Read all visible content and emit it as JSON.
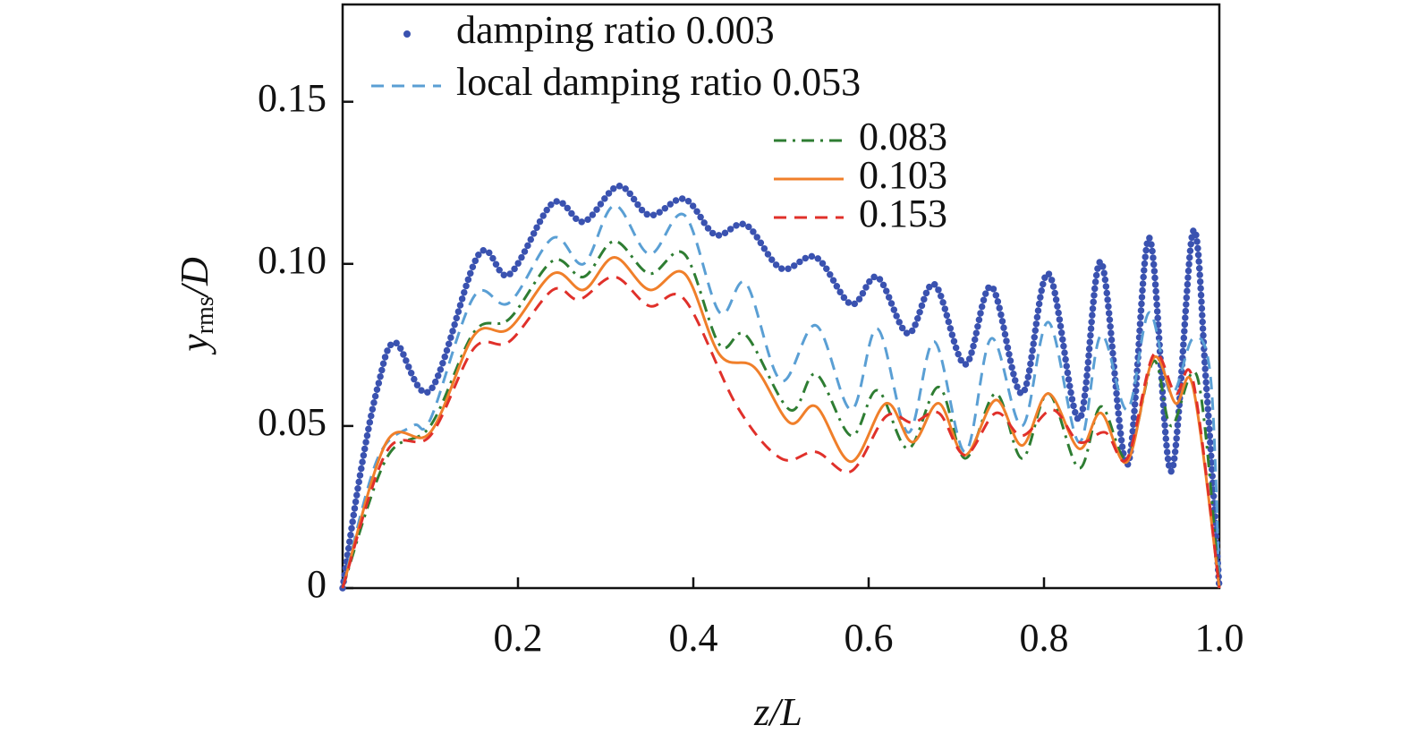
{
  "chart_data": {
    "type": "line",
    "xlabel": "z/L",
    "ylabel": {
      "main": "y",
      "sub": "rms",
      "rest": "/D"
    },
    "xlim": [
      0,
      1
    ],
    "ylim": [
      0,
      0.18
    ],
    "xticks": [
      0.2,
      0.4,
      0.6,
      0.8,
      {
        "value": 1.0,
        "label": "1.0"
      }
    ],
    "yticks": [
      0,
      0.05,
      {
        "value": 0.1,
        "label": "0.10"
      },
      0.15
    ],
    "series": [
      {
        "name": "damping ratio 0.003",
        "color": "#3a52b0",
        "style": "dotted",
        "x": [
          0,
          0.02,
          0.04,
          0.06,
          0.1,
          0.155,
          0.19,
          0.24,
          0.275,
          0.315,
          0.35,
          0.39,
          0.425,
          0.46,
          0.5,
          0.54,
          0.58,
          0.61,
          0.645,
          0.675,
          0.71,
          0.74,
          0.775,
          0.805,
          0.84,
          0.865,
          0.895,
          0.92,
          0.945,
          0.97,
          0.985,
          1.0
        ],
        "values": [
          0,
          0.035,
          0.062,
          0.0757,
          0.061,
          0.1028,
          0.0967,
          0.1188,
          0.113,
          0.124,
          0.115,
          0.12,
          0.109,
          0.112,
          0.0986,
          0.102,
          0.0876,
          0.0959,
          0.0785,
          0.0937,
          0.069,
          0.093,
          0.06,
          0.097,
          0.052,
          0.1006,
          0.038,
          0.108,
          0.036,
          0.11,
          0.063,
          0
        ]
      },
      {
        "name": "local damping ratio 0.053",
        "color": "#5a9fd4",
        "style": "dashed",
        "x": [
          0,
          0.04,
          0.08,
          0.1,
          0.15,
          0.19,
          0.24,
          0.275,
          0.31,
          0.35,
          0.39,
          0.43,
          0.46,
          0.5,
          0.54,
          0.58,
          0.61,
          0.645,
          0.675,
          0.71,
          0.74,
          0.775,
          0.805,
          0.84,
          0.865,
          0.895,
          0.92,
          0.945,
          0.97,
          0.99,
          1.0
        ],
        "values": [
          0,
          0.04,
          0.05,
          0.052,
          0.09,
          0.088,
          0.108,
          0.1,
          0.118,
          0.103,
          0.115,
          0.085,
          0.094,
          0.064,
          0.081,
          0.055,
          0.08,
          0.048,
          0.076,
          0.042,
          0.077,
          0.05,
          0.082,
          0.045,
          0.078,
          0.055,
          0.085,
          0.06,
          0.077,
          0.065,
          0
        ]
      },
      {
        "name": "0.083",
        "color": "#2e7d32",
        "style": "dashdot",
        "x": [
          0,
          0.05,
          0.1,
          0.15,
          0.19,
          0.24,
          0.275,
          0.31,
          0.35,
          0.39,
          0.43,
          0.46,
          0.51,
          0.54,
          0.58,
          0.61,
          0.645,
          0.68,
          0.71,
          0.745,
          0.775,
          0.805,
          0.84,
          0.865,
          0.895,
          0.925,
          0.945,
          0.975,
          1.0
        ],
        "values": [
          0,
          0.04,
          0.05,
          0.079,
          0.083,
          0.101,
          0.096,
          0.107,
          0.097,
          0.103,
          0.075,
          0.078,
          0.055,
          0.066,
          0.047,
          0.061,
          0.043,
          0.062,
          0.04,
          0.06,
          0.04,
          0.06,
          0.037,
          0.056,
          0.04,
          0.07,
          0.05,
          0.065,
          0
        ]
      },
      {
        "name": "0.103",
        "color": "#f07f2a",
        "style": "solid",
        "x": [
          0,
          0.05,
          0.1,
          0.15,
          0.19,
          0.24,
          0.275,
          0.31,
          0.35,
          0.39,
          0.43,
          0.47,
          0.51,
          0.54,
          0.58,
          0.62,
          0.65,
          0.68,
          0.71,
          0.745,
          0.775,
          0.805,
          0.84,
          0.865,
          0.895,
          0.925,
          0.95,
          0.97,
          1.0
        ],
        "values": [
          0,
          0.045,
          0.048,
          0.078,
          0.08,
          0.097,
          0.092,
          0.102,
          0.092,
          0.097,
          0.072,
          0.068,
          0.051,
          0.056,
          0.039,
          0.057,
          0.045,
          0.057,
          0.041,
          0.058,
          0.044,
          0.06,
          0.043,
          0.054,
          0.039,
          0.071,
          0.057,
          0.062,
          0
        ]
      },
      {
        "name": "0.153",
        "color": "#e0302a",
        "style": "dashed",
        "x": [
          0,
          0.05,
          0.1,
          0.15,
          0.19,
          0.24,
          0.27,
          0.31,
          0.35,
          0.39,
          0.45,
          0.5,
          0.54,
          0.58,
          0.62,
          0.65,
          0.68,
          0.71,
          0.745,
          0.775,
          0.81,
          0.84,
          0.87,
          0.895,
          0.925,
          0.95,
          0.97,
          1.0
        ],
        "values": [
          0,
          0.042,
          0.047,
          0.074,
          0.076,
          0.092,
          0.089,
          0.096,
          0.087,
          0.089,
          0.056,
          0.04,
          0.042,
          0.036,
          0.053,
          0.051,
          0.054,
          0.041,
          0.054,
          0.047,
          0.055,
          0.045,
          0.048,
          0.04,
          0.072,
          0.06,
          0.064,
          0
        ]
      }
    ]
  }
}
